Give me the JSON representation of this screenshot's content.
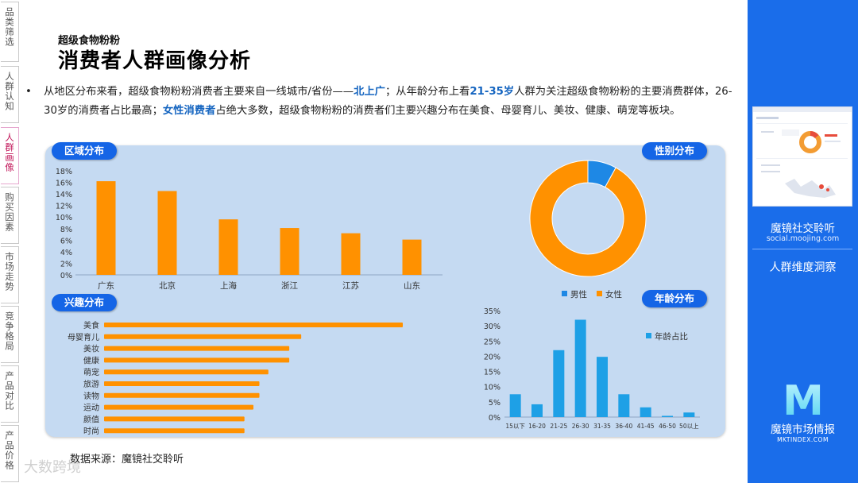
{
  "nav": {
    "items": [
      {
        "label": "品类筛选",
        "active": false
      },
      {
        "label": "人群认知",
        "active": false
      },
      {
        "label": "人群画像",
        "active": true
      },
      {
        "label": "购买因素",
        "active": false
      },
      {
        "label": "市场走势",
        "active": false
      },
      {
        "label": "竞争格局",
        "active": false
      },
      {
        "label": "产品对比",
        "active": false
      },
      {
        "label": "产品价格",
        "active": false
      }
    ]
  },
  "header": {
    "subtitle": "超级食物粉粉",
    "title": "消费者人群画像分析"
  },
  "summary": {
    "bullet": "•",
    "parts": [
      {
        "text": "从地区分布来看，超级食物粉粉消费者主要来自一线城市/省份——",
        "hl": false
      },
      {
        "text": "北上广",
        "hl": true
      },
      {
        "text": "；从年龄分布上看",
        "hl": false
      },
      {
        "text": "21-35岁",
        "hl": true
      },
      {
        "text": "人群为关注超级食物粉粉的主要消费群体，26-30岁的消费者占比最高；",
        "hl": false
      },
      {
        "text": "女性消费者",
        "hl": true
      },
      {
        "text": "占绝大多数，超级食物粉粉的消费者们主要兴趣分布在美食、母婴育儿、美妆、健康、萌宠等板块。",
        "hl": false
      }
    ]
  },
  "chart_data": [
    {
      "id": "region",
      "type": "bar",
      "title": "区域分布",
      "categories": [
        "广东",
        "北京",
        "上海",
        "浙江",
        "江苏",
        "山东"
      ],
      "values": [
        16.2,
        14.5,
        9.6,
        8.1,
        7.2,
        6.1
      ],
      "ylim": [
        0,
        18
      ],
      "yticks": [
        "0%",
        "2%",
        "4%",
        "6%",
        "8%",
        "10%",
        "12%",
        "14%",
        "16%",
        "18%"
      ],
      "color": "#ff9100"
    },
    {
      "id": "gender",
      "type": "pie",
      "title": "性别分布",
      "slices": [
        {
          "name": "男性",
          "value": 8,
          "color": "#1e88e5"
        },
        {
          "name": "女性",
          "value": 92,
          "color": "#ff9100"
        }
      ],
      "legend": "bottom"
    },
    {
      "id": "interest",
      "type": "bar",
      "orientation": "horizontal",
      "title": "兴趣分布",
      "categories": [
        "美食",
        "母婴育儿",
        "美妆",
        "健康",
        "萌宠",
        "旅游",
        "读物",
        "运动",
        "颜值",
        "时尚"
      ],
      "values": [
        100,
        66,
        62,
        62,
        55,
        52,
        52,
        50,
        47,
        47
      ],
      "color": "#ff9100"
    },
    {
      "id": "age",
      "type": "bar",
      "title": "年龄分布",
      "categories": [
        "15以下",
        "16-20",
        "21-25",
        "26-30",
        "31-35",
        "36-40",
        "41-45",
        "46-50",
        "50以上"
      ],
      "values": [
        7.5,
        4.2,
        22,
        32,
        19.8,
        7.5,
        3.2,
        0.4,
        1.5
      ],
      "ylim": [
        0,
        35
      ],
      "yticks": [
        "0%",
        "5%",
        "10%",
        "15%",
        "20%",
        "25%",
        "30%",
        "35%"
      ],
      "series_name": "年龄占比",
      "legend": "right",
      "color": "#1ea0e6"
    }
  ],
  "source": "数据来源：魔镜社交聆听",
  "watermark": "大数跨境",
  "sidebar": {
    "brand1": "魔镜社交聆听",
    "brand1_url": "social.moojing.com",
    "insight": "人群维度洞察",
    "brand2": "魔镜市场情报",
    "brand2_url": "MKTINDEX.COM",
    "logo_letter": "M"
  }
}
